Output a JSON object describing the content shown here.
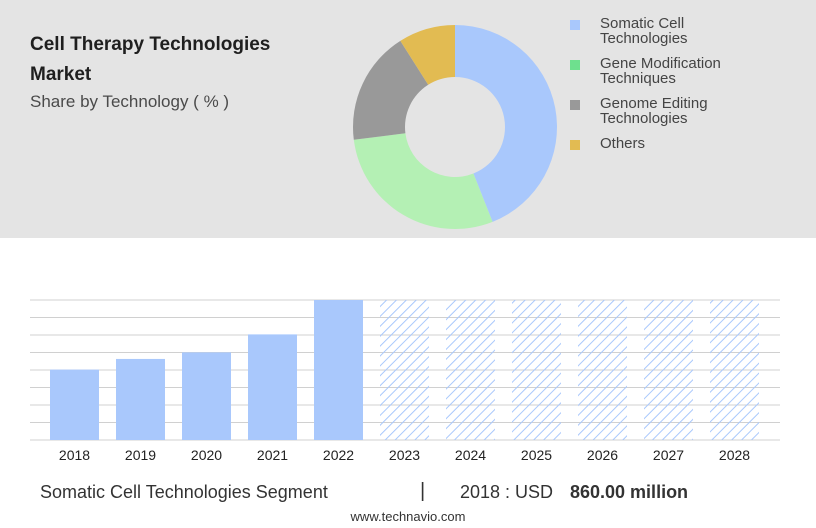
{
  "header": {
    "title": "Cell Therapy Technologies Market",
    "subtitle": "Share by Technology ( % )"
  },
  "colors": {
    "panel_bg": "#e4e4e4",
    "somatic": "#a9c8fc",
    "gene_mod": "#b4f0b4",
    "genome_edit": "#999999",
    "others": "#e2bb52",
    "legend_gene_mod": "#6ee08e",
    "bar_actual": "#a9c8fc",
    "bar_forecast": "#a9c8fc",
    "gridline": "#d0d0d0"
  },
  "chart_data": [
    {
      "type": "pie",
      "variant": "donut",
      "series": [
        {
          "name": "Somatic Cell Technologies",
          "value": 44,
          "legend_label": "Somatic Cell\nTechnologies"
        },
        {
          "name": "Gene Modification Techniques",
          "value": 29,
          "legend_label": "Gene Modification\nTechniques"
        },
        {
          "name": "Genome Editing Technologies",
          "value": 18,
          "legend_label": "Genome Editing\nTechnologies"
        },
        {
          "name": "Others",
          "value": 9,
          "legend_label": "Others"
        }
      ],
      "legend_placement": "right"
    },
    {
      "type": "bar",
      "categories": [
        "2018",
        "2019",
        "2020",
        "2021",
        "2022",
        "2023",
        "2024",
        "2025",
        "2026",
        "2027",
        "2028"
      ],
      "values": [
        860,
        990,
        1070,
        1290,
        1710,
        1710,
        1710,
        1710,
        1710,
        1710,
        1710
      ],
      "forecast_from": "2023",
      "ylim": [
        0,
        1710
      ],
      "grid": true,
      "xlabel": "",
      "ylabel": ""
    }
  ],
  "footer": {
    "segment": "Somatic Cell Technologies Segment",
    "divider": "|",
    "year_label": "2018 : USD",
    "value_label": "860.00 million",
    "site": "www.technavio.com"
  }
}
